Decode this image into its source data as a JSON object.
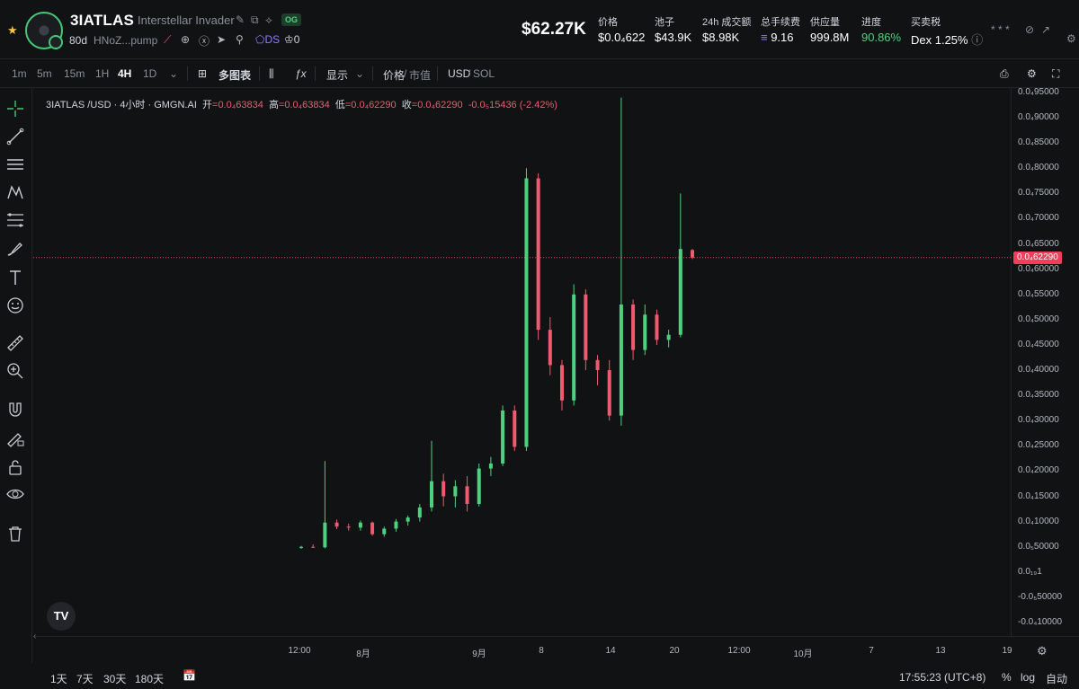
{
  "header": {
    "symbol": "3IATLAS",
    "fullname": "Interstellar Invader",
    "og_badge": "OG",
    "age": "80d",
    "address": "HNoZ...pump",
    "ds_label": "DS",
    "holders_count": "0",
    "market_cap": "$62.27K",
    "stats": [
      {
        "label": "价格",
        "value": "$0.0₄622"
      },
      {
        "label": "池子",
        "value": "$43.9K"
      },
      {
        "label": "24h 成交额",
        "value": "$8.98K"
      },
      {
        "label": "总手续费",
        "value": "9.16"
      },
      {
        "label": "供应量",
        "value": "999.8M"
      },
      {
        "label": "进度",
        "value": "90.86%"
      },
      {
        "label": "买卖税",
        "value": "Dex 1.25%"
      }
    ],
    "masked": "* * *"
  },
  "toolbar": {
    "intervals": [
      "1m",
      "5m",
      "15m",
      "1H",
      "4H",
      "1D"
    ],
    "active_interval": "4H",
    "multi_chart": "多图表",
    "display": "显示",
    "price_label": "价格",
    "mcap_label": "市值",
    "usd_label": "USD",
    "sol_label": "SOL"
  },
  "legend": {
    "pair": "3IATLAS /USD · 4小时 · GMGN.AI",
    "open_k": "开",
    "open_v": "=0.0₄63834",
    "high_k": "高",
    "high_v": "=0.0₄63834",
    "low_k": "低",
    "low_v": "=0.0₄62290",
    "close_k": "收",
    "close_v": "=0.0₄62290",
    "change": "-0.0₅15436 (-2.42%)"
  },
  "price_tag": "0.0₄62290",
  "chart_data": {
    "type": "candlestick",
    "y_ticks": [
      "0.0₄95000",
      "0.0₄90000",
      "0.0₄85000",
      "0.0₄80000",
      "0.0₄75000",
      "0.0₄70000",
      "0.0₄65000",
      "0.0₄60000",
      "0.0₄55000",
      "0.0₄50000",
      "0.0₄45000",
      "0.0₄40000",
      "0.0₄35000",
      "0.0₄30000",
      "0.0₄25000",
      "0.0₄20000",
      "0.0₄15000",
      "0.0₄10000",
      "0.0₅50000",
      "0.0₁₉1",
      "-0.0₅50000",
      "-0.0₄10000"
    ],
    "x_ticks": [
      "12:00",
      "8月",
      "9月",
      "8",
      "14",
      "20",
      "12:00",
      "10月",
      "7",
      "13",
      "19"
    ],
    "last_price": 6.229e-05,
    "candles": [
      [
        4.8e-06,
        5.2e-06,
        4.6e-06,
        5e-06
      ],
      [
        5e-06,
        5.5e-06,
        4.8e-06,
        4.9e-06
      ],
      [
        4.9e-06,
        2.2e-05,
        4.7e-06,
        9.8e-06
      ],
      [
        9.8e-06,
        1.04e-05,
        8.5e-06,
        9e-06
      ],
      [
        9e-06,
        9.6e-06,
        8.2e-06,
        8.8e-06
      ],
      [
        8.8e-06,
        1.02e-05,
        8.2e-06,
        9.8e-06
      ],
      [
        9.8e-06,
        1e-05,
        7.2e-06,
        7.5e-06
      ],
      [
        7.5e-06,
        9e-06,
        7e-06,
        8.6e-06
      ],
      [
        8.6e-06,
        1.05e-05,
        8e-06,
        1e-05
      ],
      [
        1e-05,
        1.12e-05,
        9.2e-06,
        1.08e-05
      ],
      [
        1.08e-05,
        1.35e-05,
        1e-05,
        1.28e-05
      ],
      [
        1.28e-05,
        2.6e-05,
        1.2e-05,
        1.8e-05
      ],
      [
        1.8e-05,
        1.95e-05,
        1.3e-05,
        1.5e-05
      ],
      [
        1.5e-05,
        1.82e-05,
        1.28e-05,
        1.7e-05
      ],
      [
        1.7e-05,
        1.9e-05,
        1.2e-05,
        1.35e-05
      ],
      [
        1.35e-05,
        2.15e-05,
        1.3e-05,
        2.05e-05
      ],
      [
        2.05e-05,
        2.28e-05,
        1.9e-05,
        2.15e-05
      ],
      [
        2.15e-05,
        3.3e-05,
        2.1e-05,
        3.2e-05
      ],
      [
        3.2e-05,
        3.3e-05,
        2.4e-05,
        2.48e-05
      ],
      [
        2.48e-05,
        8e-05,
        2.4e-05,
        7.8e-05
      ],
      [
        7.8e-05,
        7.9e-05,
        4.6e-05,
        4.8e-05
      ],
      [
        4.8e-05,
        5.05e-05,
        3.9e-05,
        4.1e-05
      ],
      [
        4.1e-05,
        4.2e-05,
        3.2e-05,
        3.4e-05
      ],
      [
        3.4e-05,
        5.7e-05,
        3.3e-05,
        5.5e-05
      ],
      [
        5.5e-05,
        5.6e-05,
        4e-05,
        4.2e-05
      ],
      [
        4.2e-05,
        4.3e-05,
        3.7e-05,
        4e-05
      ],
      [
        4e-05,
        4.2e-05,
        3e-05,
        3.1e-05
      ],
      [
        3.1e-05,
        9.4e-05,
        2.9e-05,
        5.3e-05
      ],
      [
        5.3e-05,
        5.4e-05,
        4.2e-05,
        4.4e-05
      ],
      [
        4.4e-05,
        5.3e-05,
        4.3e-05,
        5.1e-05
      ],
      [
        5.1e-05,
        5.2e-05,
        4.5e-05,
        4.6e-05
      ],
      [
        4.6e-05,
        4.8e-05,
        4.45e-05,
        4.7e-05
      ],
      [
        4.7e-05,
        7.5e-05,
        4.65e-05,
        6.4e-05
      ],
      [
        6.38e-05,
        6.4e-05,
        6.2e-05,
        6.23e-05
      ]
    ]
  },
  "bottom": {
    "ranges": [
      "1天",
      "7天",
      "30天",
      "180天"
    ],
    "time": "17:55:23 (UTC+8)",
    "pct": "%",
    "log": "log",
    "auto": "自动"
  },
  "colors": {
    "up": "#4ed17f",
    "down": "#ef5a6f",
    "price_line": "#f23d5b",
    "bg": "#111214"
  }
}
